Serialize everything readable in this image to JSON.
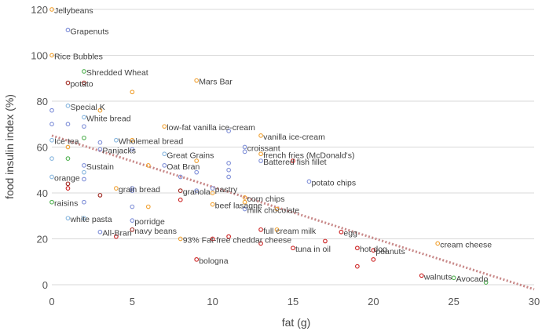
{
  "chart_data": {
    "type": "scatter",
    "title": "",
    "xlabel": "fat (g)",
    "ylabel": "food insulin index (%)",
    "xlim": [
      0,
      30
    ],
    "ylim": [
      0,
      120
    ],
    "x_ticks": [
      0,
      5,
      10,
      15,
      20,
      25,
      30
    ],
    "y_ticks": [
      0,
      20,
      40,
      60,
      80,
      100,
      120
    ],
    "grid": "horizontal",
    "legend": "none",
    "colors": {
      "blue": "#7f8fd8",
      "light_blue": "#87b6de",
      "orange": "#f0a030",
      "dark_red": "#a02820",
      "red": "#cc2020",
      "green": "#50b050",
      "trend": "#c88888"
    },
    "points": [
      {
        "x": 0,
        "y": 120,
        "color": "orange",
        "label": "Jellybeans"
      },
      {
        "x": 1,
        "y": 111,
        "color": "blue",
        "label": "Grapenuts"
      },
      {
        "x": 0,
        "y": 100,
        "color": "orange",
        "label": "Rice Bubbles"
      },
      {
        "x": 1,
        "y": 88,
        "color": "dark_red",
        "label": "potato"
      },
      {
        "x": 2,
        "y": 93,
        "color": "green",
        "label": "Shredded Wheat"
      },
      {
        "x": 2,
        "y": 88,
        "color": "dark_red",
        "label": ""
      },
      {
        "x": 9,
        "y": 89,
        "color": "orange",
        "label": "Mars Bar"
      },
      {
        "x": 1,
        "y": 78,
        "color": "light_blue",
        "label": "Special K"
      },
      {
        "x": 5,
        "y": 84,
        "color": "orange",
        "label": ""
      },
      {
        "x": 3,
        "y": 76,
        "color": "orange",
        "label": ""
      },
      {
        "x": 2,
        "y": 73,
        "color": "light_blue",
        "label": "White bread"
      },
      {
        "x": 7,
        "y": 69,
        "color": "orange",
        "label": "low-fat vanilla ice-cream"
      },
      {
        "x": 4,
        "y": 63,
        "color": "light_blue",
        "label": "Wholemeal bread"
      },
      {
        "x": 11,
        "y": 67,
        "color": "blue",
        "label": ""
      },
      {
        "x": 13,
        "y": 65,
        "color": "orange",
        "label": "vanilla ice-cream"
      },
      {
        "x": 0,
        "y": 76,
        "color": "blue",
        "label": ""
      },
      {
        "x": 0,
        "y": 70,
        "color": "blue",
        "label": ""
      },
      {
        "x": 0,
        "y": 63,
        "color": "light_blue",
        "label": "Ice tea"
      },
      {
        "x": 1,
        "y": 60,
        "color": "orange",
        "label": ""
      },
      {
        "x": 1,
        "y": 70,
        "color": "blue",
        "label": ""
      },
      {
        "x": 2,
        "y": 69,
        "color": "blue",
        "label": ""
      },
      {
        "x": 2,
        "y": 64,
        "color": "green",
        "label": ""
      },
      {
        "x": 3,
        "y": 62,
        "color": "blue",
        "label": ""
      },
      {
        "x": 5,
        "y": 63,
        "color": "orange",
        "label": ""
      },
      {
        "x": 3,
        "y": 59,
        "color": "blue",
        "label": "Panjacks"
      },
      {
        "x": 5,
        "y": 59,
        "color": "blue",
        "label": ""
      },
      {
        "x": 7,
        "y": 57,
        "color": "light_blue",
        "label": "Great Grains"
      },
      {
        "x": 12,
        "y": 60,
        "color": "blue",
        "label": "croissant"
      },
      {
        "x": 12,
        "y": 58,
        "color": "blue",
        "label": ""
      },
      {
        "x": 13,
        "y": 57,
        "color": "orange",
        "label": "french fries (McDonald's)"
      },
      {
        "x": 13,
        "y": 54,
        "color": "blue",
        "label": "Battered fish fillet"
      },
      {
        "x": 15,
        "y": 54,
        "color": "red",
        "label": ""
      },
      {
        "x": 0,
        "y": 55,
        "color": "light_blue",
        "label": ""
      },
      {
        "x": 1,
        "y": 55,
        "color": "green",
        "label": ""
      },
      {
        "x": 2,
        "y": 52,
        "color": "blue",
        "label": "Sustain"
      },
      {
        "x": 2,
        "y": 49,
        "color": "light_blue",
        "label": ""
      },
      {
        "x": 6,
        "y": 52,
        "color": "orange",
        "label": ""
      },
      {
        "x": 7,
        "y": 52,
        "color": "blue",
        "label": "Oat Bran"
      },
      {
        "x": 9,
        "y": 54,
        "color": "orange",
        "label": ""
      },
      {
        "x": 9,
        "y": 49,
        "color": "blue",
        "label": ""
      },
      {
        "x": 11,
        "y": 53,
        "color": "blue",
        "label": ""
      },
      {
        "x": 11,
        "y": 50,
        "color": "blue",
        "label": ""
      },
      {
        "x": 11,
        "y": 47,
        "color": "blue",
        "label": ""
      },
      {
        "x": 8,
        "y": 47,
        "color": "blue",
        "label": ""
      },
      {
        "x": 16,
        "y": 45,
        "color": "blue",
        "label": "potato chips"
      },
      {
        "x": 0,
        "y": 47,
        "color": "light_blue",
        "label": "orange"
      },
      {
        "x": 1,
        "y": 44,
        "color": "dark_red",
        "label": ""
      },
      {
        "x": 1,
        "y": 42,
        "color": "red",
        "label": ""
      },
      {
        "x": 2,
        "y": 46,
        "color": "blue",
        "label": ""
      },
      {
        "x": 4,
        "y": 42,
        "color": "orange",
        "label": "grain bread"
      },
      {
        "x": 5,
        "y": 42,
        "color": "blue",
        "label": ""
      },
      {
        "x": 5,
        "y": 41,
        "color": "blue",
        "label": ""
      },
      {
        "x": 8,
        "y": 41,
        "color": "dark_red",
        "label": "granola"
      },
      {
        "x": 9,
        "y": 41,
        "color": "blue",
        "label": ""
      },
      {
        "x": 10,
        "y": 42,
        "color": "blue",
        "label": "pastry"
      },
      {
        "x": 10,
        "y": 40,
        "color": "orange",
        "label": ""
      },
      {
        "x": 12,
        "y": 38,
        "color": "orange",
        "label": "corn chips"
      },
      {
        "x": 12,
        "y": 36,
        "color": "orange",
        "label": ""
      },
      {
        "x": 3,
        "y": 39,
        "color": "dark_red",
        "label": ""
      },
      {
        "x": 8,
        "y": 37,
        "color": "red",
        "label": ""
      },
      {
        "x": 0,
        "y": 36,
        "color": "green",
        "label": "raisins"
      },
      {
        "x": 2,
        "y": 36,
        "color": "blue",
        "label": ""
      },
      {
        "x": 5,
        "y": 34,
        "color": "blue",
        "label": ""
      },
      {
        "x": 6,
        "y": 34,
        "color": "orange",
        "label": ""
      },
      {
        "x": 10,
        "y": 35,
        "color": "orange",
        "label": "beef lasagne"
      },
      {
        "x": 12,
        "y": 33,
        "color": "blue",
        "label": "milk chocolate"
      },
      {
        "x": 14,
        "y": 33,
        "color": "orange",
        "label": ""
      },
      {
        "x": 1,
        "y": 29,
        "color": "light_blue",
        "label": "white pasta"
      },
      {
        "x": 2,
        "y": 29,
        "color": "light_blue",
        "label": ""
      },
      {
        "x": 5,
        "y": 28,
        "color": "blue",
        "label": "porridge"
      },
      {
        "x": 5,
        "y": 24,
        "color": "dark_red",
        "label": "navy beans"
      },
      {
        "x": 3,
        "y": 23,
        "color": "blue",
        "label": "All-Bran"
      },
      {
        "x": 4,
        "y": 21,
        "color": "red",
        "label": ""
      },
      {
        "x": 8,
        "y": 20,
        "color": "orange",
        "label": "93% Fat-free cheddar cheese"
      },
      {
        "x": 10,
        "y": 20,
        "color": "red",
        "label": ""
      },
      {
        "x": 11,
        "y": 21,
        "color": "red",
        "label": ""
      },
      {
        "x": 13,
        "y": 24,
        "color": "red",
        "label": "full cream milk"
      },
      {
        "x": 14,
        "y": 24,
        "color": "orange",
        "label": ""
      },
      {
        "x": 13,
        "y": 18,
        "color": "red",
        "label": ""
      },
      {
        "x": 15,
        "y": 16,
        "color": "red",
        "label": "tuna in oil"
      },
      {
        "x": 17,
        "y": 19,
        "color": "red",
        "label": ""
      },
      {
        "x": 18,
        "y": 23,
        "color": "red",
        "label": "egg"
      },
      {
        "x": 19,
        "y": 16,
        "color": "red",
        "label": "hot dog"
      },
      {
        "x": 20,
        "y": 15,
        "color": "red",
        "label": "peanuts"
      },
      {
        "x": 20,
        "y": 11,
        "color": "red",
        "label": ""
      },
      {
        "x": 19,
        "y": 8,
        "color": "red",
        "label": ""
      },
      {
        "x": 24,
        "y": 18,
        "color": "orange",
        "label": "cream cheese"
      },
      {
        "x": 23,
        "y": 4,
        "color": "red",
        "label": "walnuts"
      },
      {
        "x": 25,
        "y": 3,
        "color": "green",
        "label": "Avocado"
      },
      {
        "x": 27,
        "y": 1,
        "color": "green",
        "label": ""
      },
      {
        "x": 9,
        "y": 11,
        "color": "red",
        "label": "bologna"
      }
    ],
    "trendline": {
      "style": "dotted",
      "color": "trend",
      "x": [
        0,
        30
      ],
      "y": [
        65,
        -2
      ]
    }
  }
}
